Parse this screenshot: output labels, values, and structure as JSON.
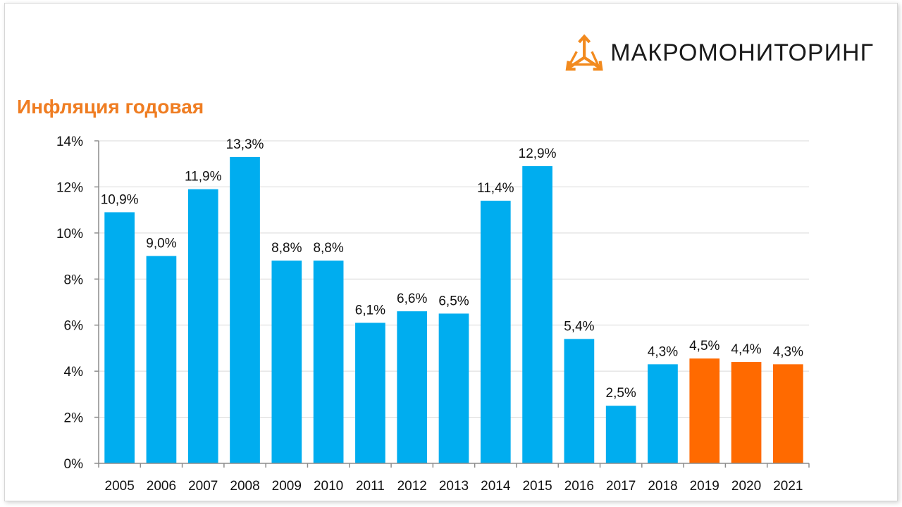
{
  "brand": {
    "name": "МАКРОМОНИТОРИНГ",
    "logo_icon": "triangle-arrows-logo-icon",
    "logo_color": "#f28a1e"
  },
  "title": "Инфляция годовая",
  "colors": {
    "actual": "#00adef",
    "forecast": "#ff6a00",
    "title": "#ef7d22",
    "grid": "#d9d9d9"
  },
  "chart_data": {
    "type": "bar",
    "title": "Инфляция годовая",
    "xlabel": "",
    "ylabel": "",
    "ylim": [
      0,
      14
    ],
    "yticks": [
      0,
      2,
      4,
      6,
      8,
      10,
      12,
      14
    ],
    "ytick_labels": [
      "0%",
      "2%",
      "4%",
      "6%",
      "8%",
      "10%",
      "12%",
      "14%"
    ],
    "grid": true,
    "categories": [
      "2005",
      "2006",
      "2007",
      "2008",
      "2009",
      "2010",
      "2011",
      "2012",
      "2013",
      "2014",
      "2015",
      "2016",
      "2017",
      "2018",
      "2019",
      "2020",
      "2021"
    ],
    "values": [
      10.9,
      9.0,
      11.9,
      13.3,
      8.8,
      8.8,
      6.1,
      6.6,
      6.5,
      11.4,
      12.9,
      5.4,
      2.5,
      4.3,
      4.55,
      4.4,
      4.3
    ],
    "value_labels": [
      "10,9%",
      "9,0%",
      "11,9%",
      "13,3%",
      "8,8%",
      "8,8%",
      "6,1%",
      "6,6%",
      "6,5%",
      "11,4%",
      "12,9%",
      "5,4%",
      "2,5%",
      "4,3%",
      "4,5%",
      "4,4%",
      "4,3%"
    ],
    "bar_colors": [
      "#00adef",
      "#00adef",
      "#00adef",
      "#00adef",
      "#00adef",
      "#00adef",
      "#00adef",
      "#00adef",
      "#00adef",
      "#00adef",
      "#00adef",
      "#00adef",
      "#00adef",
      "#00adef",
      "#ff6a00",
      "#ff6a00",
      "#ff6a00"
    ]
  }
}
